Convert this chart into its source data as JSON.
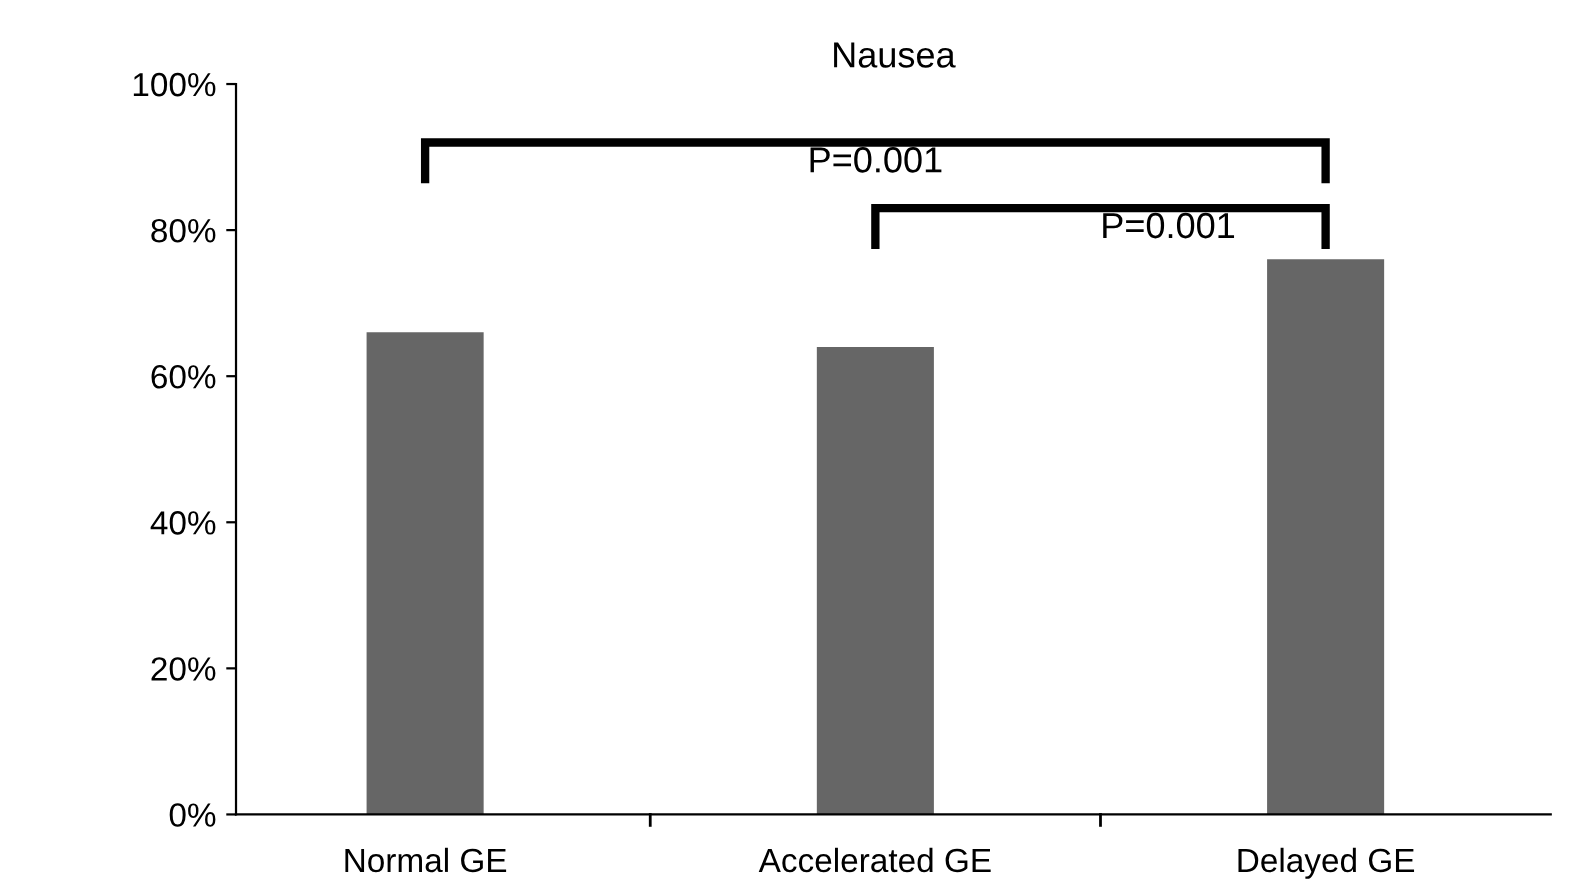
{
  "chart_data": {
    "type": "bar",
    "title": "Nausea",
    "categories": [
      "Normal GE",
      "Accelerated GE",
      "Delayed GE"
    ],
    "values": [
      66,
      64,
      76
    ],
    "color": "#666666",
    "ylim": [
      0,
      100
    ],
    "yticks": [
      {
        "value": 0,
        "label": "0%"
      },
      {
        "value": 20,
        "label": "20%"
      },
      {
        "value": 40,
        "label": "40%"
      },
      {
        "value": 60,
        "label": "60%"
      },
      {
        "value": 80,
        "label": "80%"
      },
      {
        "value": 100,
        "label": "100%"
      }
    ],
    "annotations": [
      "P=0.001",
      "P=0.001"
    ],
    "grid": false
  }
}
